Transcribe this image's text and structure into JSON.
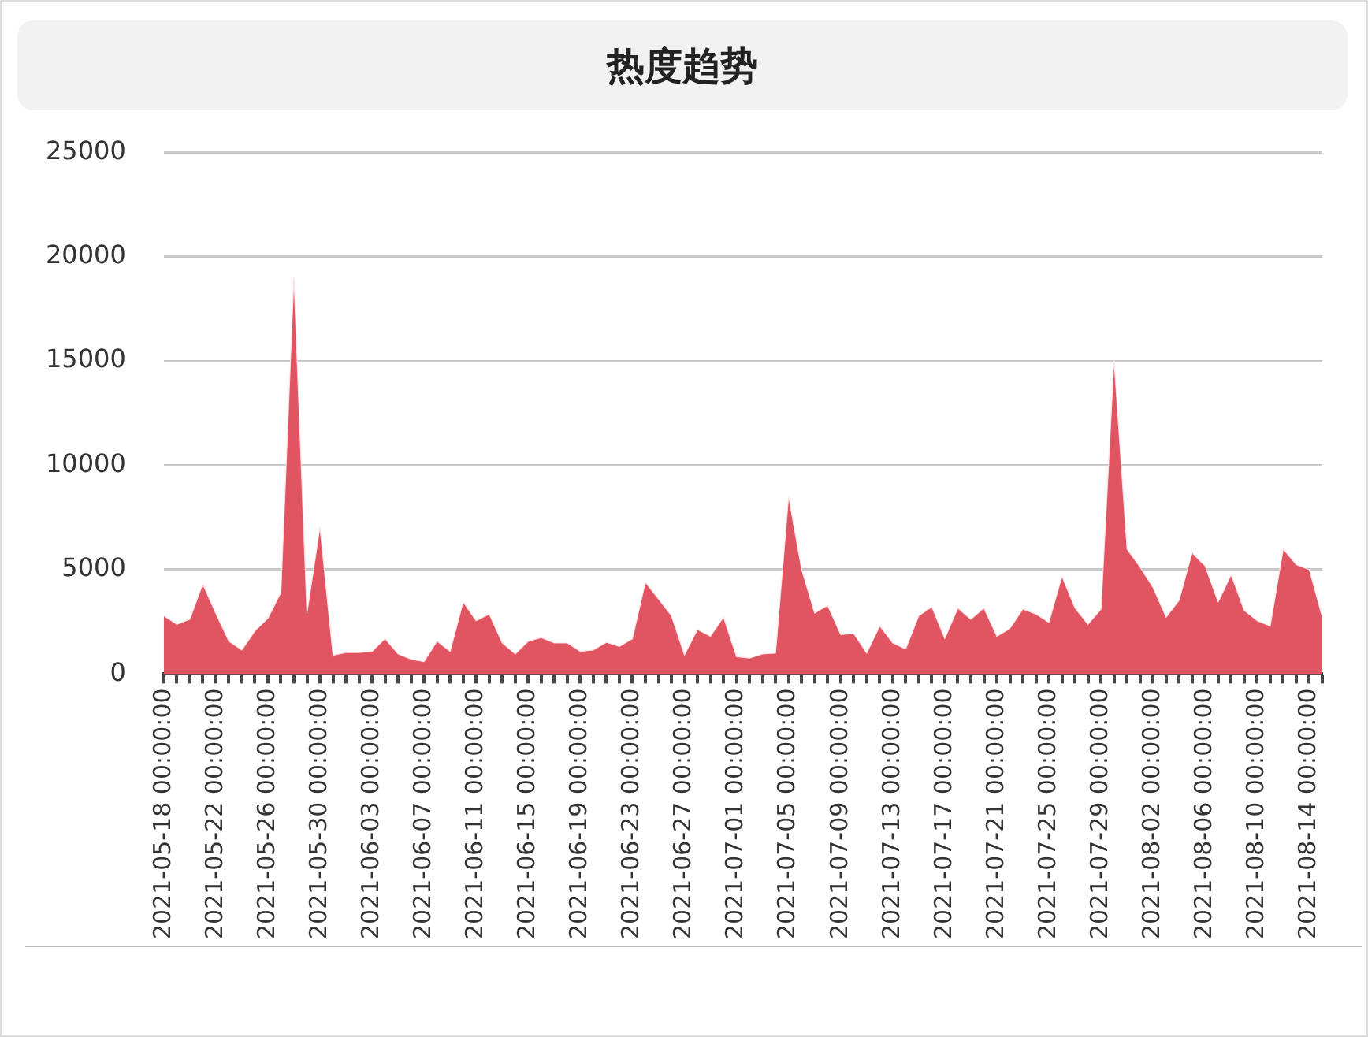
{
  "chart_data": {
    "type": "area",
    "title": "热度趋势",
    "categories": [
      "2021-05-18 00:00:00",
      null,
      null,
      null,
      "2021-05-22 00:00:00",
      null,
      null,
      null,
      "2021-05-26 00:00:00",
      null,
      null,
      null,
      "2021-05-30 00:00:00",
      null,
      null,
      null,
      "2021-06-03 00:00:00",
      null,
      null,
      null,
      "2021-06-07 00:00:00",
      null,
      null,
      null,
      "2021-06-11 00:00:00",
      null,
      null,
      null,
      "2021-06-15 00:00:00",
      null,
      null,
      null,
      "2021-06-19 00:00:00",
      null,
      null,
      null,
      "2021-06-23 00:00:00",
      null,
      null,
      null,
      "2021-06-27 00:00:00",
      null,
      null,
      null,
      "2021-07-01 00:00:00",
      null,
      null,
      null,
      "2021-07-05 00:00:00",
      null,
      null,
      null,
      "2021-07-09 00:00:00",
      null,
      null,
      null,
      "2021-07-13 00:00:00",
      null,
      null,
      null,
      "2021-07-17 00:00:00",
      null,
      null,
      null,
      "2021-07-21 00:00:00",
      null,
      null,
      null,
      "2021-07-25 00:00:00",
      null,
      null,
      null,
      "2021-07-29 00:00:00",
      null,
      null,
      null,
      "2021-08-02 00:00:00",
      null,
      null,
      null,
      "2021-08-06 00:00:00",
      null,
      null,
      null,
      "2021-08-10 00:00:00",
      null,
      null,
      null,
      "2021-08-14 00:00:00",
      null
    ],
    "series": [
      {
        "color": "#e05561",
        "values": [
          2790,
          2380,
          2620,
          4310,
          2900,
          1570,
          1150,
          2060,
          2670,
          3900,
          19000,
          2900,
          7030,
          900,
          1030,
          1030,
          1080,
          1690,
          960,
          710,
          590,
          1570,
          1080,
          3450,
          2550,
          2870,
          1490,
          960,
          1570,
          1740,
          1490,
          1490,
          1080,
          1150,
          1520,
          1320,
          1690,
          4390,
          3600,
          2790,
          910,
          2130,
          1810,
          2720,
          830,
          760,
          960,
          1000,
          8500,
          5000,
          2920,
          3280,
          1890,
          1940,
          1000,
          2300,
          1490,
          1200,
          2790,
          3210,
          1690,
          3160,
          2620,
          3160,
          1810,
          2180,
          3110,
          2870,
          2470,
          4680,
          3160,
          2380,
          3110,
          15040,
          5980,
          5120,
          4140,
          2720,
          3530,
          5810,
          5170,
          3450,
          4750,
          3040,
          2550,
          2300,
          5980,
          5240,
          5000,
          2720
        ]
      }
    ],
    "ylim": [
      0,
      25000
    ],
    "yticks": [
      0,
      5000,
      10000,
      15000,
      20000,
      25000
    ],
    "grid": "y",
    "legend": false,
    "marker": "none"
  }
}
